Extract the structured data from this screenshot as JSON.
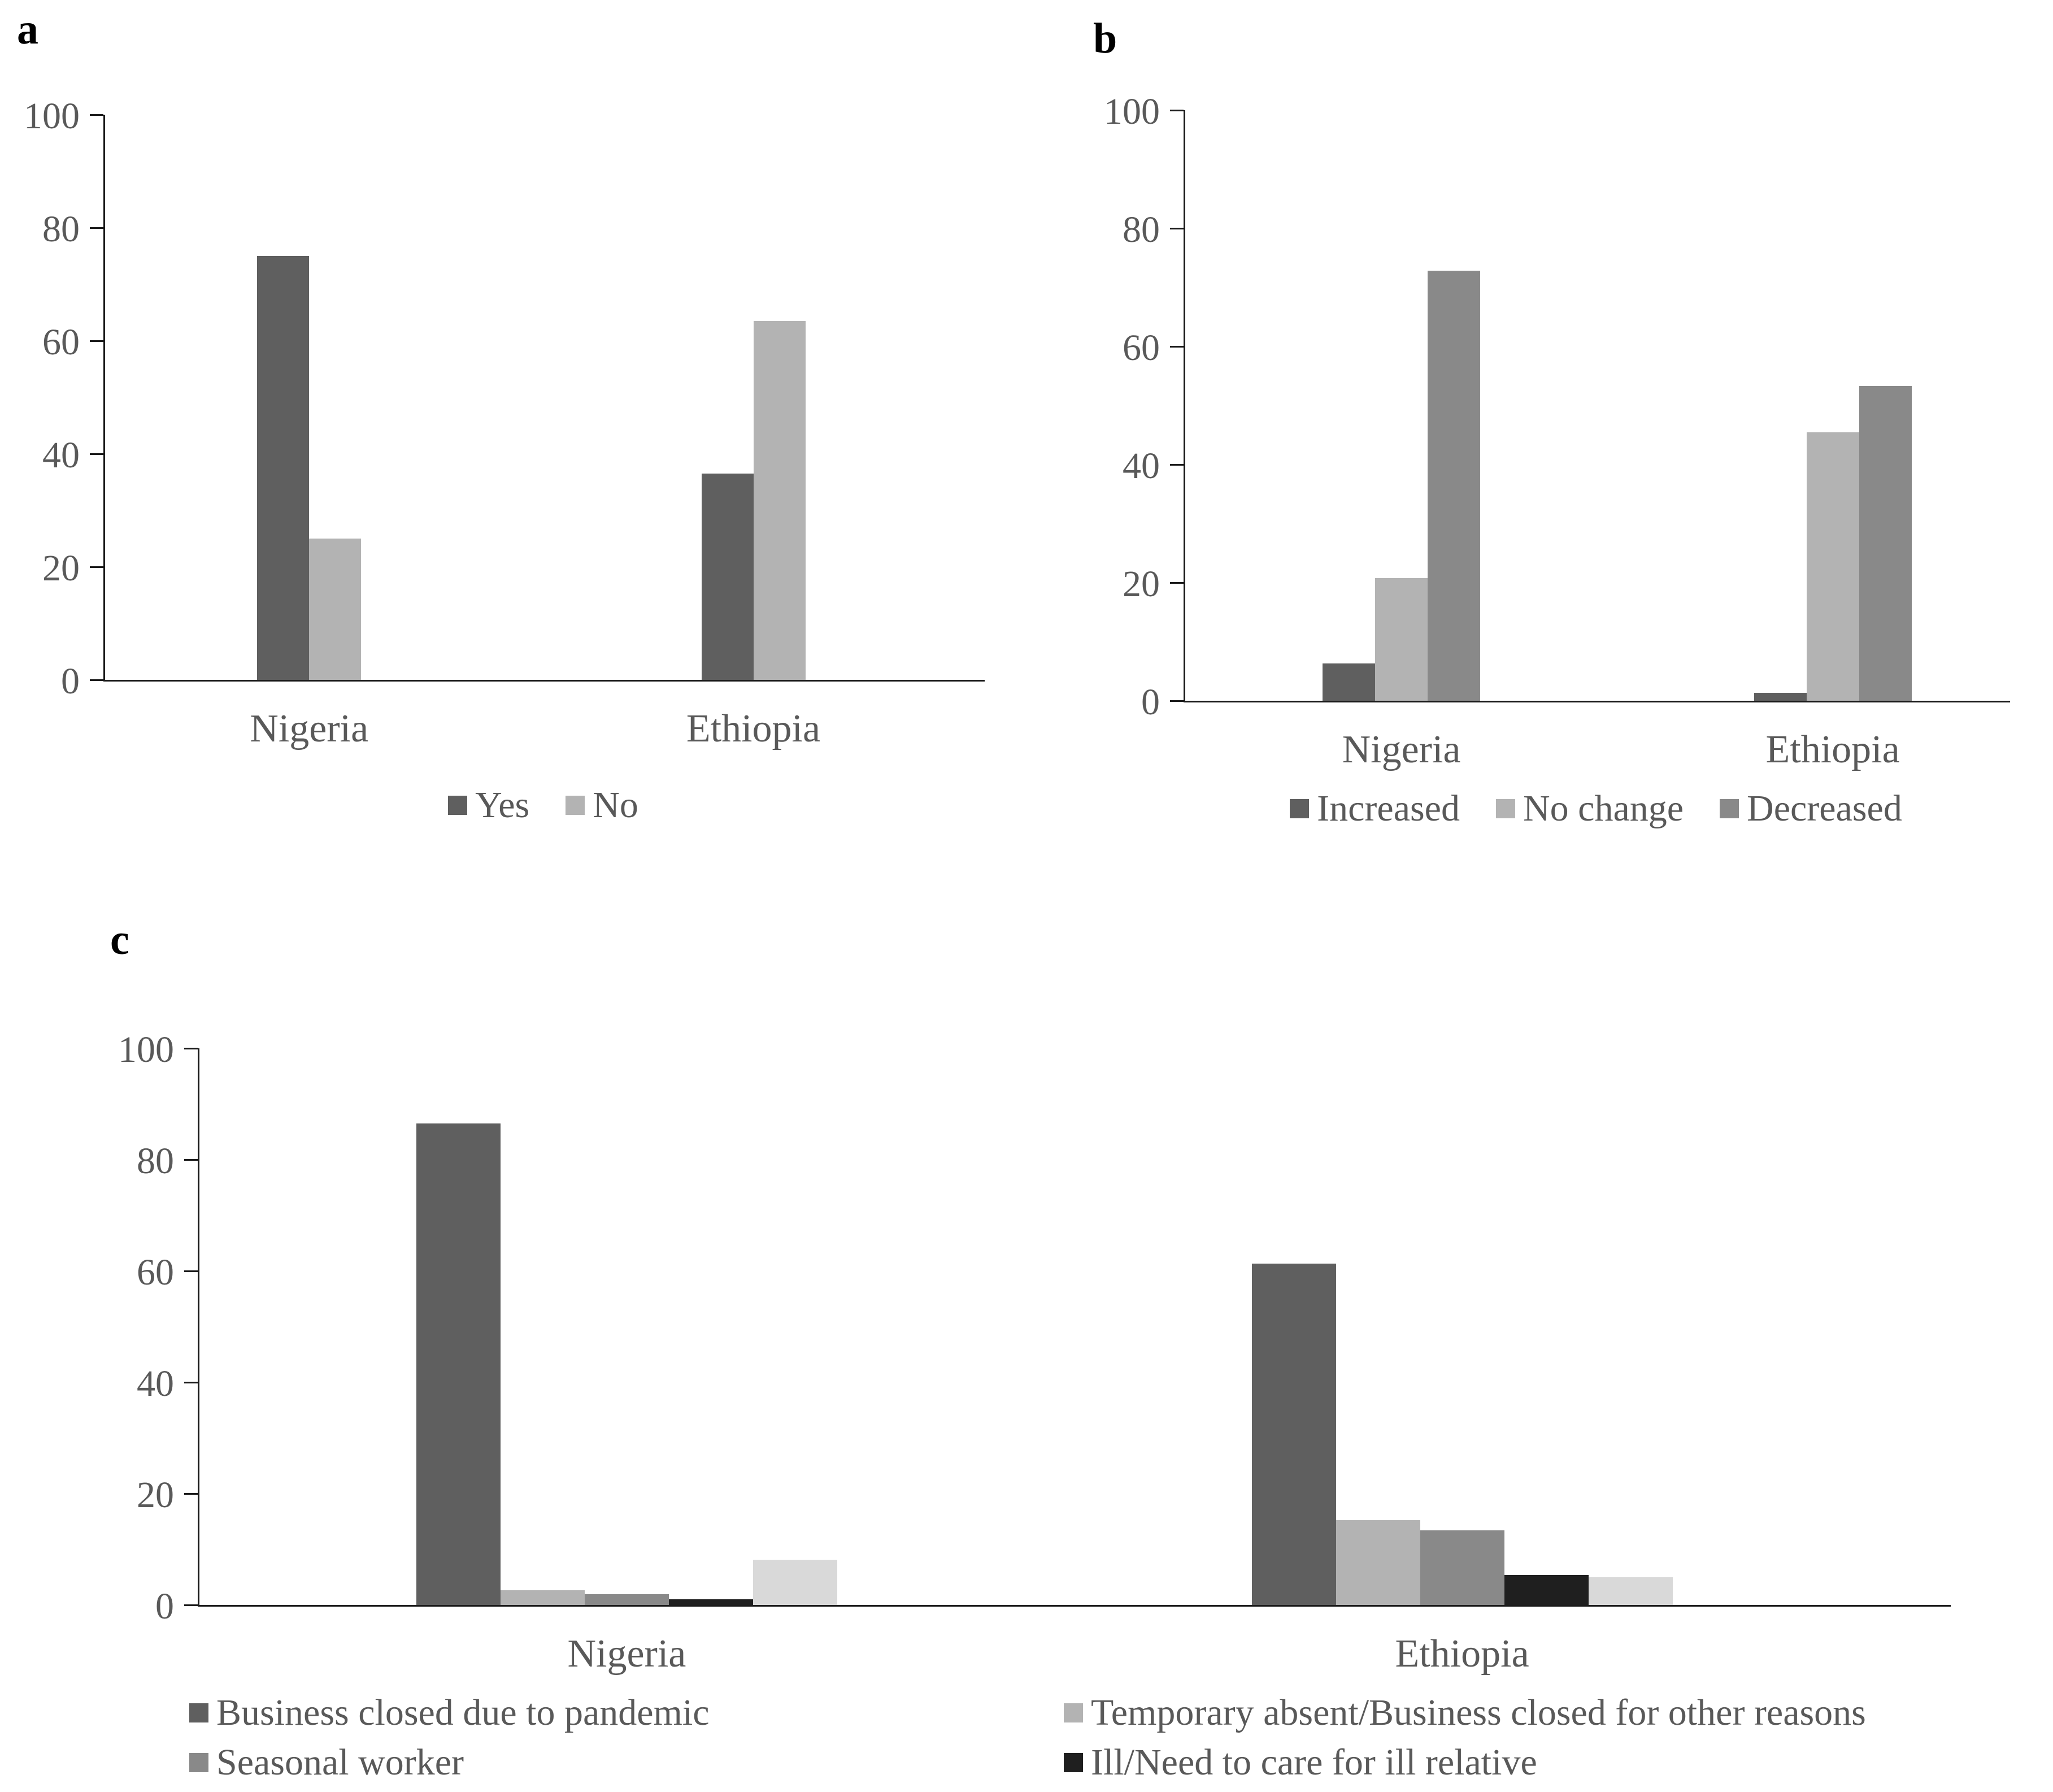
{
  "figure": {
    "background": "#ffffff",
    "text_color": "#595959",
    "axis_color": "#1a1a1a",
    "panel_letters": [
      "a",
      "b",
      "c"
    ]
  },
  "chart_data": [
    {
      "id": "a",
      "type": "bar",
      "panel_label": "a",
      "categories": [
        "Nigeria",
        "Ethiopia"
      ],
      "series": [
        {
          "name": "Yes",
          "color": "#5f5f5f",
          "values": [
            75,
            36.5
          ],
          "in_legend": true
        },
        {
          "name": "No",
          "color": "#b3b3b3",
          "values": [
            25,
            63.5
          ],
          "in_legend": true
        }
      ],
      "ylim": [
        0,
        100
      ],
      "yticks": [
        0,
        20,
        40,
        60,
        80,
        100
      ],
      "grid": false,
      "legend_position": "bottom"
    },
    {
      "id": "b",
      "type": "bar",
      "panel_label": "b",
      "categories": [
        "Nigeria",
        "Ethiopia"
      ],
      "series": [
        {
          "name": "Increased",
          "color": "#5f5f5f",
          "values": [
            6.3,
            1.3
          ],
          "in_legend": true
        },
        {
          "name": "No change",
          "color": "#b3b3b3",
          "values": [
            20.8,
            45.5
          ],
          "in_legend": true
        },
        {
          "name": "Decreased",
          "color": "#898989",
          "values": [
            72.8,
            53.3
          ],
          "in_legend": true
        }
      ],
      "ylim": [
        0,
        100
      ],
      "yticks": [
        0,
        20,
        40,
        60,
        80,
        100
      ],
      "grid": false,
      "legend_position": "bottom"
    },
    {
      "id": "c",
      "type": "bar",
      "panel_label": "c",
      "categories": [
        "Nigeria",
        "Ethiopia"
      ],
      "series": [
        {
          "name": "Business closed due to pandemic",
          "color": "#5f5f5f",
          "values": [
            86.5,
            61.3
          ],
          "in_legend": true
        },
        {
          "name": "Temporary absent/Business closed for other reasons",
          "color": "#b3b3b3",
          "values": [
            2.6,
            15.2
          ],
          "in_legend": true
        },
        {
          "name": "Seasonal worker",
          "color": "#898989",
          "values": [
            1.9,
            13.4
          ],
          "in_legend": true
        },
        {
          "name": "Ill/Need to care for ill relative",
          "color": "#1f1f1f",
          "values": [
            1.0,
            5.4
          ],
          "in_legend": true
        },
        {
          "name": "",
          "color": "#d9d9d9",
          "values": [
            8.1,
            5.0
          ],
          "in_legend": false
        }
      ],
      "ylim": [
        0,
        100
      ],
      "yticks": [
        0,
        20,
        40,
        60,
        80,
        100
      ],
      "grid": false,
      "legend_position": "bottom",
      "legend_columns": 2
    }
  ]
}
